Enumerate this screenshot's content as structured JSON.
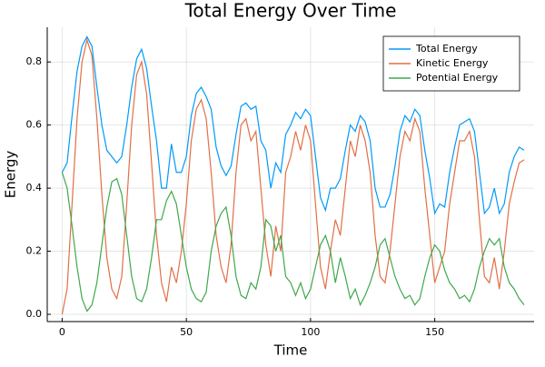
{
  "chart_data": {
    "type": "line",
    "title": "Total Energy Over Time",
    "x_label": "Time",
    "y_label": "Energy",
    "x": [
      0,
      2,
      4,
      6,
      8,
      10,
      12,
      14,
      16,
      18,
      20,
      22,
      24,
      26,
      28,
      30,
      32,
      34,
      36,
      38,
      40,
      42,
      44,
      46,
      48,
      50,
      52,
      54,
      56,
      58,
      60,
      62,
      64,
      66,
      68,
      70,
      72,
      74,
      76,
      78,
      80,
      82,
      84,
      86,
      88,
      90,
      92,
      94,
      96,
      98,
      100,
      102,
      104,
      106,
      108,
      110,
      112,
      114,
      116,
      118,
      120,
      122,
      124,
      126,
      128,
      130,
      132,
      134,
      136,
      138,
      140,
      142,
      144,
      146,
      148,
      150,
      152,
      154,
      156,
      158,
      160,
      162,
      164,
      166,
      168,
      170,
      172,
      174,
      176,
      178,
      180,
      182,
      184,
      186
    ],
    "series": [
      {
        "name": "Total Energy",
        "color": "#009afa",
        "values": [
          0.45,
          0.48,
          0.63,
          0.77,
          0.85,
          0.88,
          0.85,
          0.72,
          0.6,
          0.52,
          0.5,
          0.48,
          0.5,
          0.6,
          0.72,
          0.81,
          0.84,
          0.78,
          0.66,
          0.55,
          0.4,
          0.4,
          0.54,
          0.45,
          0.45,
          0.5,
          0.63,
          0.7,
          0.72,
          0.69,
          0.65,
          0.53,
          0.47,
          0.44,
          0.47,
          0.57,
          0.66,
          0.67,
          0.65,
          0.66,
          0.55,
          0.52,
          0.4,
          0.48,
          0.45,
          0.57,
          0.6,
          0.64,
          0.62,
          0.65,
          0.63,
          0.5,
          0.37,
          0.33,
          0.4,
          0.4,
          0.43,
          0.52,
          0.6,
          0.58,
          0.63,
          0.61,
          0.55,
          0.4,
          0.34,
          0.34,
          0.38,
          0.47,
          0.58,
          0.63,
          0.61,
          0.65,
          0.63,
          0.52,
          0.43,
          0.32,
          0.35,
          0.34,
          0.45,
          0.53,
          0.6,
          0.61,
          0.62,
          0.58,
          0.45,
          0.32,
          0.34,
          0.4,
          0.32,
          0.35,
          0.45,
          0.5,
          0.53,
          0.52
        ]
      },
      {
        "name": "Kinetic Energy",
        "color": "#e26f46",
        "values": [
          0.0,
          0.08,
          0.35,
          0.62,
          0.8,
          0.87,
          0.82,
          0.62,
          0.38,
          0.18,
          0.08,
          0.05,
          0.12,
          0.35,
          0.6,
          0.76,
          0.8,
          0.7,
          0.48,
          0.25,
          0.1,
          0.04,
          0.15,
          0.1,
          0.2,
          0.35,
          0.55,
          0.65,
          0.68,
          0.62,
          0.45,
          0.25,
          0.15,
          0.1,
          0.22,
          0.45,
          0.6,
          0.62,
          0.55,
          0.58,
          0.4,
          0.22,
          0.12,
          0.28,
          0.2,
          0.45,
          0.5,
          0.58,
          0.52,
          0.6,
          0.55,
          0.35,
          0.15,
          0.08,
          0.2,
          0.3,
          0.25,
          0.4,
          0.55,
          0.5,
          0.6,
          0.55,
          0.45,
          0.25,
          0.12,
          0.1,
          0.2,
          0.35,
          0.5,
          0.58,
          0.55,
          0.62,
          0.58,
          0.4,
          0.25,
          0.1,
          0.15,
          0.2,
          0.35,
          0.45,
          0.55,
          0.55,
          0.58,
          0.5,
          0.3,
          0.12,
          0.1,
          0.18,
          0.08,
          0.2,
          0.35,
          0.42,
          0.48,
          0.49
        ]
      },
      {
        "name": "Potential Energy",
        "color": "#3fa84d",
        "values": [
          0.45,
          0.4,
          0.28,
          0.15,
          0.05,
          0.01,
          0.03,
          0.1,
          0.22,
          0.34,
          0.42,
          0.43,
          0.38,
          0.25,
          0.12,
          0.05,
          0.04,
          0.08,
          0.18,
          0.3,
          0.3,
          0.36,
          0.39,
          0.35,
          0.25,
          0.15,
          0.08,
          0.05,
          0.04,
          0.07,
          0.2,
          0.28,
          0.32,
          0.34,
          0.25,
          0.12,
          0.06,
          0.05,
          0.1,
          0.08,
          0.15,
          0.3,
          0.28,
          0.2,
          0.25,
          0.12,
          0.1,
          0.06,
          0.1,
          0.05,
          0.08,
          0.15,
          0.22,
          0.25,
          0.2,
          0.1,
          0.18,
          0.12,
          0.05,
          0.08,
          0.03,
          0.06,
          0.1,
          0.15,
          0.22,
          0.24,
          0.18,
          0.12,
          0.08,
          0.05,
          0.06,
          0.03,
          0.05,
          0.12,
          0.18,
          0.22,
          0.2,
          0.14,
          0.1,
          0.08,
          0.05,
          0.06,
          0.04,
          0.08,
          0.15,
          0.2,
          0.24,
          0.22,
          0.24,
          0.15,
          0.1,
          0.08,
          0.05,
          0.03
        ]
      }
    ],
    "xlim": [
      -6,
      190
    ],
    "xticks": [
      0,
      50,
      100,
      150
    ],
    "ylim": [
      -0.023,
      0.91
    ],
    "yticks": [
      {
        "value": 0,
        "label": "0.0"
      },
      0.2,
      0.4,
      0.6,
      0.8
    ],
    "grid": true,
    "legend": "top-right"
  }
}
